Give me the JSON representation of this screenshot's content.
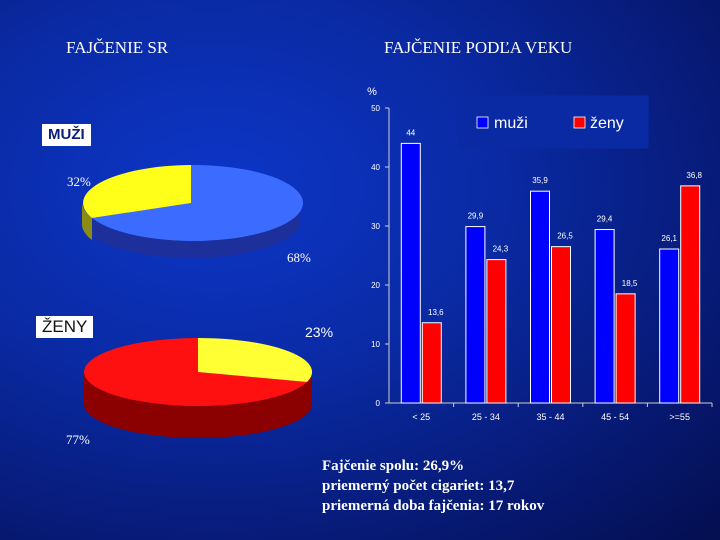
{
  "titles": {
    "left": "FAJČENIE SR",
    "right": "FAJČENIE PODĽA VEKU"
  },
  "pies": {
    "muzi": {
      "label": "MUŽI",
      "small_pct_label": "32%",
      "large_pct_label": "68%",
      "small_value": 32,
      "large_value": 68
    },
    "zeny": {
      "label": "ŽENY",
      "small_pct_label": "23%",
      "large_pct_label": "77%",
      "small_value": 23,
      "large_value": 77
    }
  },
  "colors": {
    "muzi_large": "#3b6cff",
    "muzi_large_side": "#1c2f9a",
    "muzi_small": "#ffff19",
    "muzi_small_side": "#8c8c14",
    "zeny_large": "#ff1010",
    "zeny_large_side": "#8b0000",
    "zeny_small": "#ffff33",
    "bar_muzi": "#0000ff",
    "bar_zeny": "#ff0000"
  },
  "chart_data": {
    "type": "bar",
    "ylabel": "%",
    "ylim": [
      0,
      50
    ],
    "yticks": [
      0,
      10,
      20,
      30,
      40,
      50
    ],
    "categories": [
      "< 25",
      "25 - 34",
      "35 - 44",
      "45 - 54",
      ">=55"
    ],
    "series": [
      {
        "name": "muži",
        "values": [
          44,
          29.9,
          35.9,
          29.4,
          26.1
        ],
        "labels": [
          "44",
          "29,9",
          "35,9",
          "29,4",
          "26,1"
        ]
      },
      {
        "name": "ženy",
        "values": [
          13.6,
          24.3,
          26.5,
          18.5,
          36.8
        ],
        "labels": [
          "13,6",
          "24,3",
          "26,5",
          "18,5",
          "36,8"
        ]
      }
    ],
    "legend": "top-right",
    "grid": false
  },
  "summary": {
    "line1": "Fajčenie spolu: 26,9%",
    "line2": "priemerný počet cigariet: 13,7",
    "line3": "priemerná doba fajčenia: 17 rokov"
  }
}
